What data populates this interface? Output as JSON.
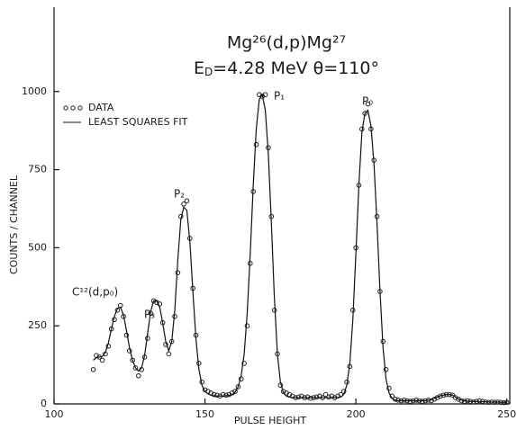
{
  "chart_data": {
    "type": "scatter",
    "title": "Mg²⁶(d,p)Mg²⁷",
    "subtitle": {
      "main": "E",
      "sub": "D",
      "rest": "=4.28 MeV   θ=110°"
    },
    "x_label": "PULSE    HEIGHT",
    "y_label": "COUNTS / CHANNEL",
    "annotations": [
      "C¹²(d,p₀)",
      "P₃",
      "P₂",
      "P₁",
      "P₀"
    ],
    "legend": "upper left",
    "xlim": [
      100,
      251
    ],
    "ylim": [
      0,
      1270
    ],
    "xticks": [
      100,
      150,
      200,
      250
    ],
    "yticks": [
      0,
      250,
      500,
      750,
      1000
    ],
    "x": [
      113,
      114,
      115,
      116,
      117,
      118,
      119,
      120,
      121,
      122,
      123,
      124,
      125,
      126,
      127,
      128,
      129,
      130,
      131,
      132,
      133,
      134,
      135,
      136,
      137,
      138,
      139,
      140,
      141,
      142,
      143,
      144,
      145,
      146,
      147,
      148,
      149,
      150,
      151,
      152,
      153,
      154,
      155,
      156,
      157,
      158,
      159,
      160,
      161,
      162,
      163,
      164,
      165,
      166,
      167,
      168,
      169,
      170,
      171,
      172,
      173,
      174,
      175,
      176,
      177,
      178,
      179,
      180,
      181,
      182,
      183,
      184,
      185,
      186,
      187,
      188,
      189,
      190,
      191,
      192,
      193,
      194,
      195,
      196,
      197,
      198,
      199,
      200,
      201,
      202,
      203,
      204,
      205,
      206,
      207,
      208,
      209,
      210,
      211,
      212,
      213,
      214,
      215,
      216,
      217,
      218,
      219,
      220,
      221,
      222,
      223,
      224,
      225,
      226,
      227,
      228,
      229,
      230,
      231,
      232,
      233,
      234,
      235,
      236,
      237,
      238,
      239,
      240,
      241,
      242,
      243,
      244,
      245,
      246,
      247,
      248,
      249,
      250
    ],
    "series": [
      {
        "name": "DATA",
        "style": "markers",
        "color": "#222222",
        "values": [
          110,
          155,
          150,
          140,
          160,
          185,
          240,
          270,
          300,
          315,
          280,
          220,
          170,
          140,
          115,
          90,
          110,
          150,
          210,
          290,
          330,
          325,
          320,
          260,
          190,
          160,
          200,
          280,
          420,
          600,
          640,
          650,
          530,
          370,
          220,
          130,
          70,
          45,
          40,
          35,
          30,
          28,
          25,
          30,
          28,
          30,
          35,
          40,
          55,
          80,
          130,
          250,
          450,
          680,
          830,
          990,
          985,
          990,
          820,
          600,
          300,
          160,
          60,
          40,
          35,
          30,
          25,
          20,
          22,
          25,
          20,
          22,
          18,
          20,
          22,
          25,
          20,
          30,
          22,
          25,
          20,
          25,
          30,
          40,
          70,
          120,
          300,
          500,
          700,
          880,
          930,
          960,
          880,
          780,
          600,
          360,
          200,
          110,
          50,
          25,
          15,
          12,
          10,
          12,
          10,
          8,
          10,
          12,
          10,
          8,
          10,
          12,
          10,
          15,
          20,
          25,
          28,
          30,
          30,
          28,
          20,
          15,
          10,
          8,
          10,
          8,
          6,
          8,
          10,
          8,
          6,
          5,
          6,
          5,
          6,
          5,
          4,
          5
        ]
      },
      {
        "name": "LEAST SQUARES FIT",
        "style": "line",
        "color": "#111111",
        "values": [
          140,
          148,
          150,
          152,
          165,
          195,
          240,
          280,
          305,
          310,
          285,
          235,
          180,
          140,
          115,
          105,
          115,
          155,
          225,
          295,
          330,
          330,
          310,
          260,
          200,
          170,
          200,
          300,
          460,
          590,
          630,
          620,
          520,
          360,
          210,
          110,
          60,
          40,
          32,
          28,
          26,
          25,
          25,
          25,
          26,
          27,
          30,
          38,
          55,
          90,
          160,
          290,
          480,
          700,
          880,
          975,
          990,
          940,
          800,
          580,
          340,
          160,
          70,
          35,
          25,
          22,
          20,
          20,
          20,
          20,
          20,
          20,
          20,
          20,
          20,
          20,
          20,
          20,
          20,
          20,
          20,
          20,
          22,
          30,
          60,
          130,
          270,
          480,
          700,
          870,
          930,
          940,
          890,
          770,
          580,
          360,
          180,
          80,
          35,
          18,
          12,
          10,
          10,
          10,
          10,
          10,
          10,
          10,
          10,
          10,
          10,
          12,
          14,
          18,
          22,
          26,
          28,
          30,
          30,
          28,
          22,
          16,
          12,
          10,
          9,
          8,
          8,
          8,
          7,
          7,
          7,
          6,
          6,
          6,
          6,
          5,
          5,
          5
        ]
      }
    ]
  }
}
